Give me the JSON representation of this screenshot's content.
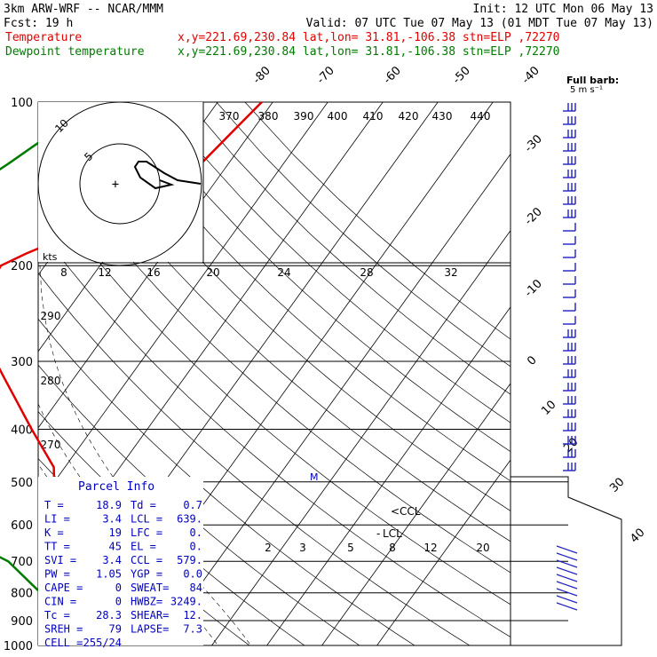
{
  "header": {
    "model": "3km ARW-WRF -- NCAR/MMM",
    "init": "Init: 12 UTC Mon 06 May 13",
    "fcst": "Fcst:    19 h",
    "valid": "Valid: 07 UTC Tue 07 May 13 (01 MDT Tue 07 May 13)",
    "temp_label": "Temperature",
    "dew_label": "Dewpoint temperature",
    "location": "x,y=221.69,230.84   lat,lon= 31.81,-106.38   stn=ELP ,72270"
  },
  "colors": {
    "temperature": "#e00000",
    "dewpoint": "#007a00",
    "parcel_text": "#0000c0",
    "grid": "#000000"
  },
  "chart_data": {
    "type": "line",
    "title": "",
    "pressure_levels": [
      "100",
      "200",
      "300",
      "400",
      "500",
      "600",
      "700",
      "800",
      "900",
      "1000"
    ],
    "isotherm_labels": [
      "-80",
      "-70",
      "-60",
      "-50",
      "-40",
      "-30",
      "-20",
      "-10",
      "0",
      "10",
      "20",
      "30",
      "40"
    ],
    "theta_labels": [
      "370",
      "380",
      "390",
      "400",
      "410",
      "420",
      "430",
      "440"
    ],
    "theta_labels_left": [
      "290",
      "280",
      "270"
    ],
    "mixing_ratio_labels": [
      "2",
      "3",
      "5",
      "8",
      "12",
      "20"
    ],
    "hodograph": {
      "unit": "kts",
      "ring_labels": [
        "5",
        "10"
      ],
      "speed_labels": [
        "8",
        "12",
        "16",
        "20",
        "24",
        "28",
        "32"
      ]
    },
    "series": [
      {
        "name": "Temperature",
        "x": [
          -32,
          -35,
          -39,
          -47,
          -55,
          -58,
          -57,
          -52,
          -43,
          -31,
          -22,
          -17,
          -9,
          -2,
          8,
          18.9,
          19.5
        ],
        "pressure": [
          100,
          130,
          150,
          170,
          190,
          200,
          230,
          270,
          320,
          400,
          470,
          550,
          620,
          700,
          800,
          900,
          870
        ]
      },
      {
        "name": "Dewpoint temperature",
        "x": [
          -62,
          -70,
          -77,
          -86,
          -91,
          -92,
          -90,
          -84,
          -75,
          -58,
          -50,
          -44,
          -36,
          -18,
          -8,
          0.7,
          1.0
        ],
        "pressure": [
          100,
          130,
          160,
          200,
          230,
          260,
          320,
          360,
          400,
          450,
          500,
          550,
          600,
          700,
          800,
          900,
          880
        ]
      }
    ],
    "annotations": {
      "ccl": "CCL",
      "lcl": "LCL",
      "m": "M"
    },
    "wind_barb_label": {
      "title": "Full barb:",
      "value": "5 m s⁻¹"
    }
  },
  "parcel": {
    "title": "Parcel Info",
    "rows": [
      [
        "T  =",
        "18.9",
        "Td =",
        "0.7"
      ],
      [
        "LI =",
        "3.4",
        "LCL =",
        "639."
      ],
      [
        "K  =",
        "19",
        "LFC =",
        "0."
      ],
      [
        "TT =",
        "45",
        "EL  =",
        "0."
      ],
      [
        "SVI =",
        "3.4",
        "CCL =",
        "579."
      ],
      [
        "PW =",
        "1.05",
        "YGP =",
        "0.0"
      ],
      [
        "CAPE =",
        "0",
        "SWEAT=",
        "84"
      ],
      [
        "CIN =",
        "0",
        "HWBZ=",
        "3249."
      ],
      [
        "Tc =",
        "28.3",
        "SHEAR=",
        "12."
      ],
      [
        "SREH =",
        "79",
        "LAPSE=",
        "7.3"
      ],
      [
        "CELL =",
        "255/24",
        "",
        ""
      ]
    ]
  }
}
